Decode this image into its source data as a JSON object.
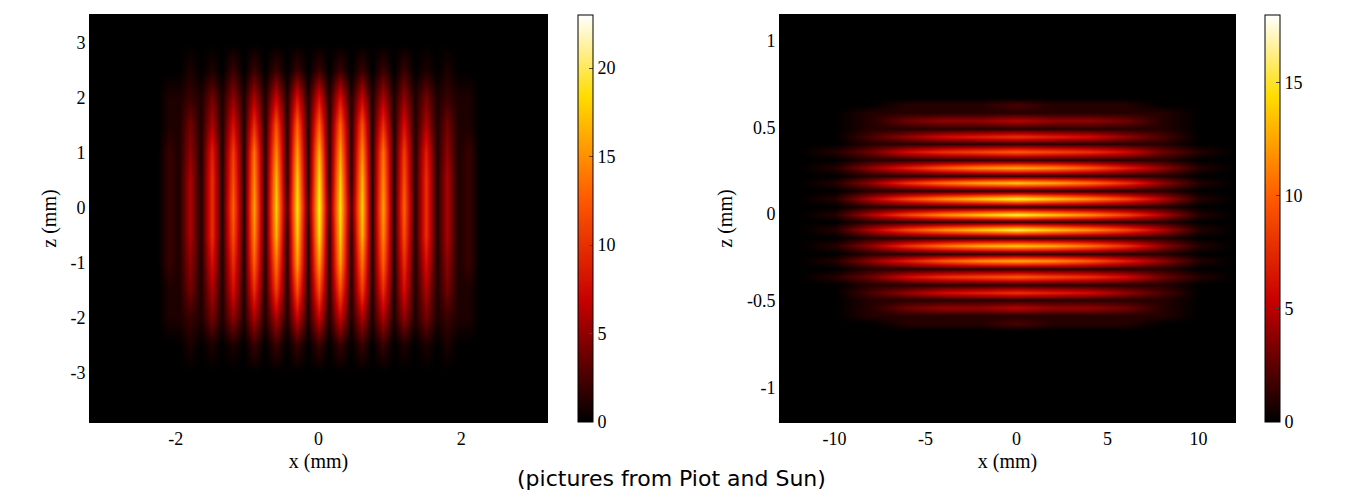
{
  "chart_data": [
    {
      "type": "heatmap",
      "x_label": "x (mm)",
      "y_label": "z (mm)",
      "xlim": [
        -3.2,
        3.2
      ],
      "ylim": [
        -3.9,
        3.5
      ],
      "xticks": [
        -2,
        0,
        2
      ],
      "yticks": [
        -3,
        -2,
        -1,
        0,
        1,
        2,
        3
      ],
      "colorbar_range": [
        0,
        23
      ],
      "colorbar_ticks": [
        0,
        5,
        10,
        15,
        20
      ],
      "x": [
        -2.4,
        -2.25,
        -2.1,
        -1.95,
        -1.8,
        -1.65,
        -1.5,
        -1.35,
        -1.2,
        -1.05,
        -0.9,
        -0.75,
        -0.6,
        -0.45,
        -0.3,
        -0.15,
        0,
        0.15,
        0.3,
        0.45,
        0.6,
        0.75,
        0.9,
        1.05,
        1.2,
        1.35,
        1.5,
        1.65,
        1.8,
        1.95,
        2.1,
        2.25,
        2.4
      ],
      "y": [
        -3,
        -2.5,
        -2,
        -1.5,
        -1,
        -0.5,
        0,
        0.5,
        1,
        1.5,
        2,
        2.5,
        3
      ],
      "cells": [
        [
          0,
          0,
          0,
          0,
          0,
          0,
          0,
          0,
          0,
          0,
          0,
          0,
          0,
          0,
          0,
          0,
          0,
          0,
          0,
          0,
          0,
          0,
          0,
          0,
          0,
          0,
          0,
          0,
          0,
          0,
          0,
          0,
          0
        ],
        [
          0,
          0,
          0,
          0,
          1,
          0,
          1,
          0,
          1,
          0,
          2,
          0,
          2,
          0,
          2,
          0,
          2,
          0,
          2,
          0,
          2,
          0,
          2,
          0,
          1,
          0,
          1,
          0,
          1,
          0,
          0,
          0,
          0
        ],
        [
          0,
          0,
          1,
          1,
          2,
          1,
          4,
          1,
          5,
          1,
          6,
          1,
          6,
          1,
          7,
          1,
          7,
          1,
          7,
          1,
          6,
          1,
          6,
          1,
          5,
          1,
          4,
          1,
          2,
          1,
          1,
          0,
          0
        ],
        [
          0,
          0,
          1,
          1,
          4,
          1,
          6,
          1,
          8,
          1,
          10,
          1,
          11,
          1,
          12,
          1,
          12,
          1,
          12,
          1,
          11,
          1,
          10,
          1,
          8,
          1,
          6,
          1,
          4,
          1,
          1,
          0,
          0
        ],
        [
          0,
          0,
          2,
          1,
          5,
          1,
          8,
          1,
          10,
          1,
          13,
          1,
          14,
          1,
          16,
          1,
          16,
          1,
          16,
          1,
          14,
          1,
          13,
          1,
          10,
          1,
          8,
          1,
          5,
          1,
          2,
          0,
          0
        ],
        [
          0,
          0,
          2,
          1,
          6,
          1,
          10,
          1,
          12,
          1,
          15,
          1,
          17,
          1,
          18,
          1,
          19,
          1,
          18,
          1,
          17,
          1,
          15,
          1,
          12,
          1,
          10,
          1,
          6,
          1,
          2,
          0,
          0
        ],
        [
          0,
          0,
          2,
          1,
          6,
          1,
          10,
          1,
          13,
          1,
          16,
          1,
          18,
          2,
          19,
          2,
          20,
          2,
          19,
          2,
          18,
          1,
          16,
          1,
          13,
          1,
          10,
          1,
          6,
          1,
          2,
          0,
          0
        ],
        [
          0,
          0,
          2,
          1,
          6,
          1,
          10,
          1,
          12,
          1,
          15,
          1,
          17,
          1,
          18,
          1,
          19,
          1,
          18,
          1,
          17,
          1,
          15,
          1,
          12,
          1,
          10,
          1,
          6,
          1,
          2,
          0,
          0
        ],
        [
          0,
          0,
          2,
          1,
          5,
          1,
          9,
          1,
          11,
          1,
          14,
          1,
          15,
          1,
          16,
          1,
          17,
          1,
          16,
          1,
          15,
          1,
          14,
          1,
          11,
          1,
          9,
          1,
          5,
          1,
          2,
          0,
          0
        ],
        [
          0,
          0,
          1,
          1,
          4,
          1,
          6,
          1,
          8,
          1,
          10,
          1,
          12,
          1,
          13,
          1,
          13,
          1,
          13,
          1,
          12,
          1,
          10,
          1,
          8,
          1,
          6,
          1,
          4,
          1,
          1,
          0,
          0
        ],
        [
          0,
          0,
          1,
          1,
          2,
          1,
          4,
          1,
          5,
          1,
          6,
          1,
          7,
          1,
          8,
          1,
          8,
          1,
          8,
          1,
          7,
          1,
          6,
          1,
          5,
          1,
          4,
          1,
          2,
          1,
          1,
          0,
          0
        ],
        [
          0,
          0,
          0,
          0,
          1,
          0,
          1,
          0,
          2,
          0,
          2,
          0,
          2,
          0,
          2,
          0,
          2,
          0,
          2,
          0,
          2,
          0,
          2,
          0,
          2,
          0,
          1,
          0,
          1,
          0,
          0,
          0,
          0
        ],
        [
          0,
          0,
          0,
          0,
          0,
          0,
          0,
          0,
          0,
          0,
          0,
          0,
          0,
          0,
          0,
          0,
          0,
          0,
          0,
          0,
          0,
          0,
          0,
          0,
          0,
          0,
          0,
          0,
          0,
          0,
          0,
          0,
          0
        ]
      ]
    },
    {
      "type": "heatmap",
      "x_label": "x (mm)",
      "y_label": "z (mm)",
      "xlim": [
        -13,
        12
      ],
      "ylim": [
        -1.2,
        1.15
      ],
      "xticks": [
        -10,
        -5,
        0,
        5,
        10
      ],
      "yticks": [
        -1,
        -0.5,
        0,
        0.5,
        1
      ],
      "colorbar_range": [
        0,
        18
      ],
      "colorbar_ticks": [
        0,
        5,
        10,
        15
      ],
      "x": [
        -12,
        -10,
        -8,
        -6,
        -4,
        -2,
        0,
        2,
        4,
        6,
        8,
        10,
        12
      ],
      "y": [
        -0.72,
        -0.675,
        -0.63,
        -0.585,
        -0.54,
        -0.495,
        -0.45,
        -0.405,
        -0.36,
        -0.315,
        -0.27,
        -0.225,
        -0.18,
        -0.135,
        -0.09,
        -0.045,
        0,
        0.045,
        0.09,
        0.135,
        0.18,
        0.225,
        0.27,
        0.315,
        0.36,
        0.405,
        0.45,
        0.495,
        0.54,
        0.585,
        0.63,
        0.675,
        0.72
      ],
      "cells": [
        [
          0,
          0,
          0,
          0,
          0,
          0,
          0,
          0,
          0,
          0,
          0,
          0,
          0
        ],
        [
          0,
          0,
          0,
          0,
          0,
          0,
          0,
          0,
          0,
          0,
          0,
          0,
          0
        ],
        [
          0,
          0,
          0,
          1,
          1,
          1,
          2,
          1,
          1,
          1,
          0,
          0,
          0
        ],
        [
          0,
          0,
          1,
          1,
          1,
          1,
          1,
          1,
          1,
          1,
          1,
          0,
          0
        ],
        [
          0,
          0,
          1,
          3,
          4,
          4,
          5,
          4,
          4,
          3,
          1,
          0,
          0
        ],
        [
          0,
          0,
          1,
          1,
          1,
          1,
          1,
          1,
          1,
          1,
          1,
          0,
          0
        ],
        [
          0,
          0,
          2,
          4,
          6,
          7,
          8,
          7,
          6,
          4,
          2,
          0,
          0
        ],
        [
          0,
          0,
          1,
          1,
          1,
          1,
          1,
          1,
          1,
          1,
          1,
          0,
          0
        ],
        [
          0,
          1,
          3,
          6,
          8,
          9,
          10,
          9,
          8,
          6,
          3,
          1,
          0
        ],
        [
          0,
          0,
          1,
          1,
          1,
          1,
          1,
          1,
          1,
          1,
          1,
          0,
          0
        ],
        [
          0,
          1,
          4,
          7,
          10,
          12,
          13,
          12,
          10,
          7,
          4,
          1,
          0
        ],
        [
          0,
          0,
          1,
          1,
          1,
          1,
          1,
          1,
          1,
          1,
          1,
          0,
          0
        ],
        [
          0,
          1,
          4,
          8,
          11,
          13,
          14,
          13,
          11,
          8,
          4,
          1,
          0
        ],
        [
          0,
          0,
          1,
          1,
          1,
          1,
          1,
          1,
          1,
          1,
          1,
          0,
          0
        ],
        [
          0,
          1,
          5,
          9,
          12,
          14,
          16,
          14,
          12,
          9,
          5,
          1,
          0
        ],
        [
          0,
          0,
          1,
          1,
          1,
          1,
          1,
          1,
          1,
          1,
          1,
          0,
          0
        ],
        [
          0,
          1,
          5,
          9,
          12,
          14,
          16,
          14,
          12,
          9,
          5,
          1,
          0
        ],
        [
          0,
          0,
          1,
          1,
          1,
          1,
          1,
          1,
          1,
          1,
          1,
          0,
          0
        ],
        [
          0,
          1,
          5,
          9,
          12,
          14,
          16,
          14,
          12,
          9,
          5,
          1,
          0
        ],
        [
          0,
          0,
          1,
          1,
          1,
          1,
          1,
          1,
          1,
          1,
          1,
          0,
          0
        ],
        [
          0,
          1,
          4,
          8,
          11,
          13,
          14,
          13,
          11,
          8,
          4,
          1,
          0
        ],
        [
          0,
          0,
          1,
          1,
          1,
          1,
          1,
          1,
          1,
          1,
          1,
          0,
          0
        ],
        [
          0,
          1,
          4,
          7,
          10,
          12,
          13,
          12,
          10,
          7,
          4,
          1,
          0
        ],
        [
          0,
          0,
          1,
          1,
          1,
          1,
          1,
          1,
          1,
          1,
          1,
          0,
          0
        ],
        [
          0,
          1,
          3,
          6,
          8,
          9,
          10,
          9,
          8,
          6,
          3,
          1,
          0
        ],
        [
          0,
          0,
          1,
          1,
          1,
          1,
          1,
          1,
          1,
          1,
          1,
          0,
          0
        ],
        [
          0,
          0,
          2,
          4,
          6,
          7,
          8,
          7,
          6,
          4,
          2,
          0,
          0
        ],
        [
          0,
          0,
          1,
          1,
          1,
          1,
          1,
          1,
          1,
          1,
          1,
          0,
          0
        ],
        [
          0,
          0,
          1,
          3,
          4,
          4,
          5,
          4,
          4,
          3,
          1,
          0,
          0
        ],
        [
          0,
          0,
          1,
          1,
          1,
          1,
          1,
          1,
          1,
          1,
          1,
          0,
          0
        ],
        [
          0,
          0,
          0,
          1,
          1,
          1,
          2,
          1,
          1,
          1,
          0,
          0,
          0
        ],
        [
          0,
          0,
          0,
          0,
          0,
          0,
          0,
          0,
          0,
          0,
          0,
          0,
          0
        ],
        [
          0,
          0,
          0,
          0,
          0,
          0,
          0,
          0,
          0,
          0,
          0,
          0,
          0
        ]
      ]
    }
  ],
  "annotation": "(pictures from Piot and Sun)"
}
